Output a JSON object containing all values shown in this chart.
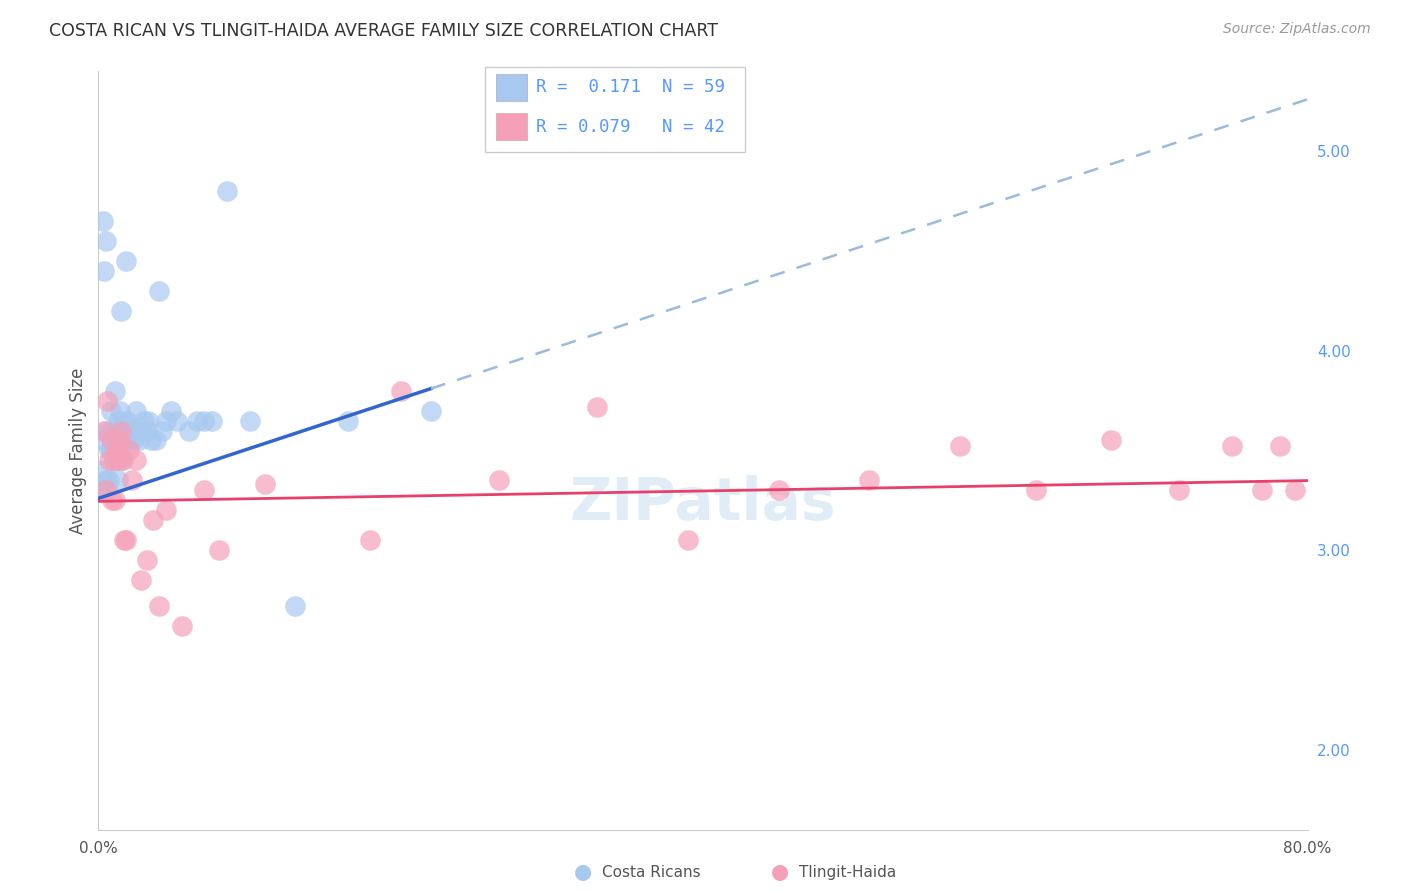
{
  "title": "COSTA RICAN VS TLINGIT-HAIDA AVERAGE FAMILY SIZE CORRELATION CHART",
  "source": "Source: ZipAtlas.com",
  "ylabel": "Average Family Size",
  "right_yticks": [
    2.0,
    3.0,
    4.0,
    5.0
  ],
  "xlim": [
    0.0,
    0.8
  ],
  "ylim": [
    1.6,
    5.4
  ],
  "blue_color": "#A8C8F0",
  "pink_color": "#F5A0B8",
  "blue_line_color": "#3366CC",
  "pink_line_color": "#E8406A",
  "dashed_line_color": "#99BBDD",
  "watermark_color": "#C8DDF0",
  "cr_x": [
    0.002,
    0.003,
    0.004,
    0.005,
    0.005,
    0.006,
    0.006,
    0.007,
    0.007,
    0.008,
    0.008,
    0.009,
    0.009,
    0.01,
    0.01,
    0.011,
    0.011,
    0.012,
    0.012,
    0.013,
    0.013,
    0.014,
    0.014,
    0.015,
    0.015,
    0.016,
    0.016,
    0.017,
    0.018,
    0.018,
    0.019,
    0.02,
    0.021,
    0.022,
    0.023,
    0.025,
    0.027,
    0.028,
    0.03,
    0.032,
    0.033,
    0.035,
    0.038,
    0.04,
    0.042,
    0.045,
    0.048,
    0.052,
    0.06,
    0.065,
    0.07,
    0.075,
    0.085,
    0.1,
    0.13,
    0.165,
    0.22,
    0.003,
    0.004
  ],
  "cr_y": [
    3.3,
    3.55,
    3.4,
    3.35,
    4.55,
    3.6,
    3.3,
    3.5,
    3.35,
    3.7,
    3.5,
    3.55,
    3.6,
    3.45,
    3.55,
    3.8,
    3.5,
    3.45,
    3.55,
    3.65,
    3.35,
    3.5,
    3.7,
    3.45,
    4.2,
    3.55,
    3.65,
    3.6,
    3.55,
    4.45,
    3.65,
    3.6,
    3.55,
    3.6,
    3.55,
    3.7,
    3.55,
    3.6,
    3.65,
    3.6,
    3.65,
    3.55,
    3.55,
    4.3,
    3.6,
    3.65,
    3.7,
    3.65,
    3.6,
    3.65,
    3.65,
    3.65,
    4.8,
    3.65,
    2.72,
    3.65,
    3.7,
    4.65,
    4.4
  ],
  "th_x": [
    0.004,
    0.005,
    0.006,
    0.007,
    0.008,
    0.009,
    0.01,
    0.011,
    0.012,
    0.013,
    0.014,
    0.015,
    0.016,
    0.017,
    0.018,
    0.02,
    0.022,
    0.025,
    0.028,
    0.032,
    0.036,
    0.04,
    0.045,
    0.055,
    0.07,
    0.08,
    0.11,
    0.18,
    0.2,
    0.265,
    0.33,
    0.39,
    0.45,
    0.51,
    0.57,
    0.62,
    0.67,
    0.715,
    0.75,
    0.77,
    0.782,
    0.792
  ],
  "th_y": [
    3.6,
    3.3,
    3.75,
    3.45,
    3.55,
    3.25,
    3.45,
    3.25,
    3.5,
    3.45,
    3.55,
    3.6,
    3.45,
    3.05,
    3.05,
    3.5,
    3.35,
    3.45,
    2.85,
    2.95,
    3.15,
    2.72,
    3.2,
    2.62,
    3.3,
    3.0,
    3.33,
    3.05,
    3.8,
    3.35,
    3.72,
    3.05,
    3.3,
    3.35,
    3.52,
    3.3,
    3.55,
    3.3,
    3.52,
    3.3,
    3.52,
    3.3
  ]
}
